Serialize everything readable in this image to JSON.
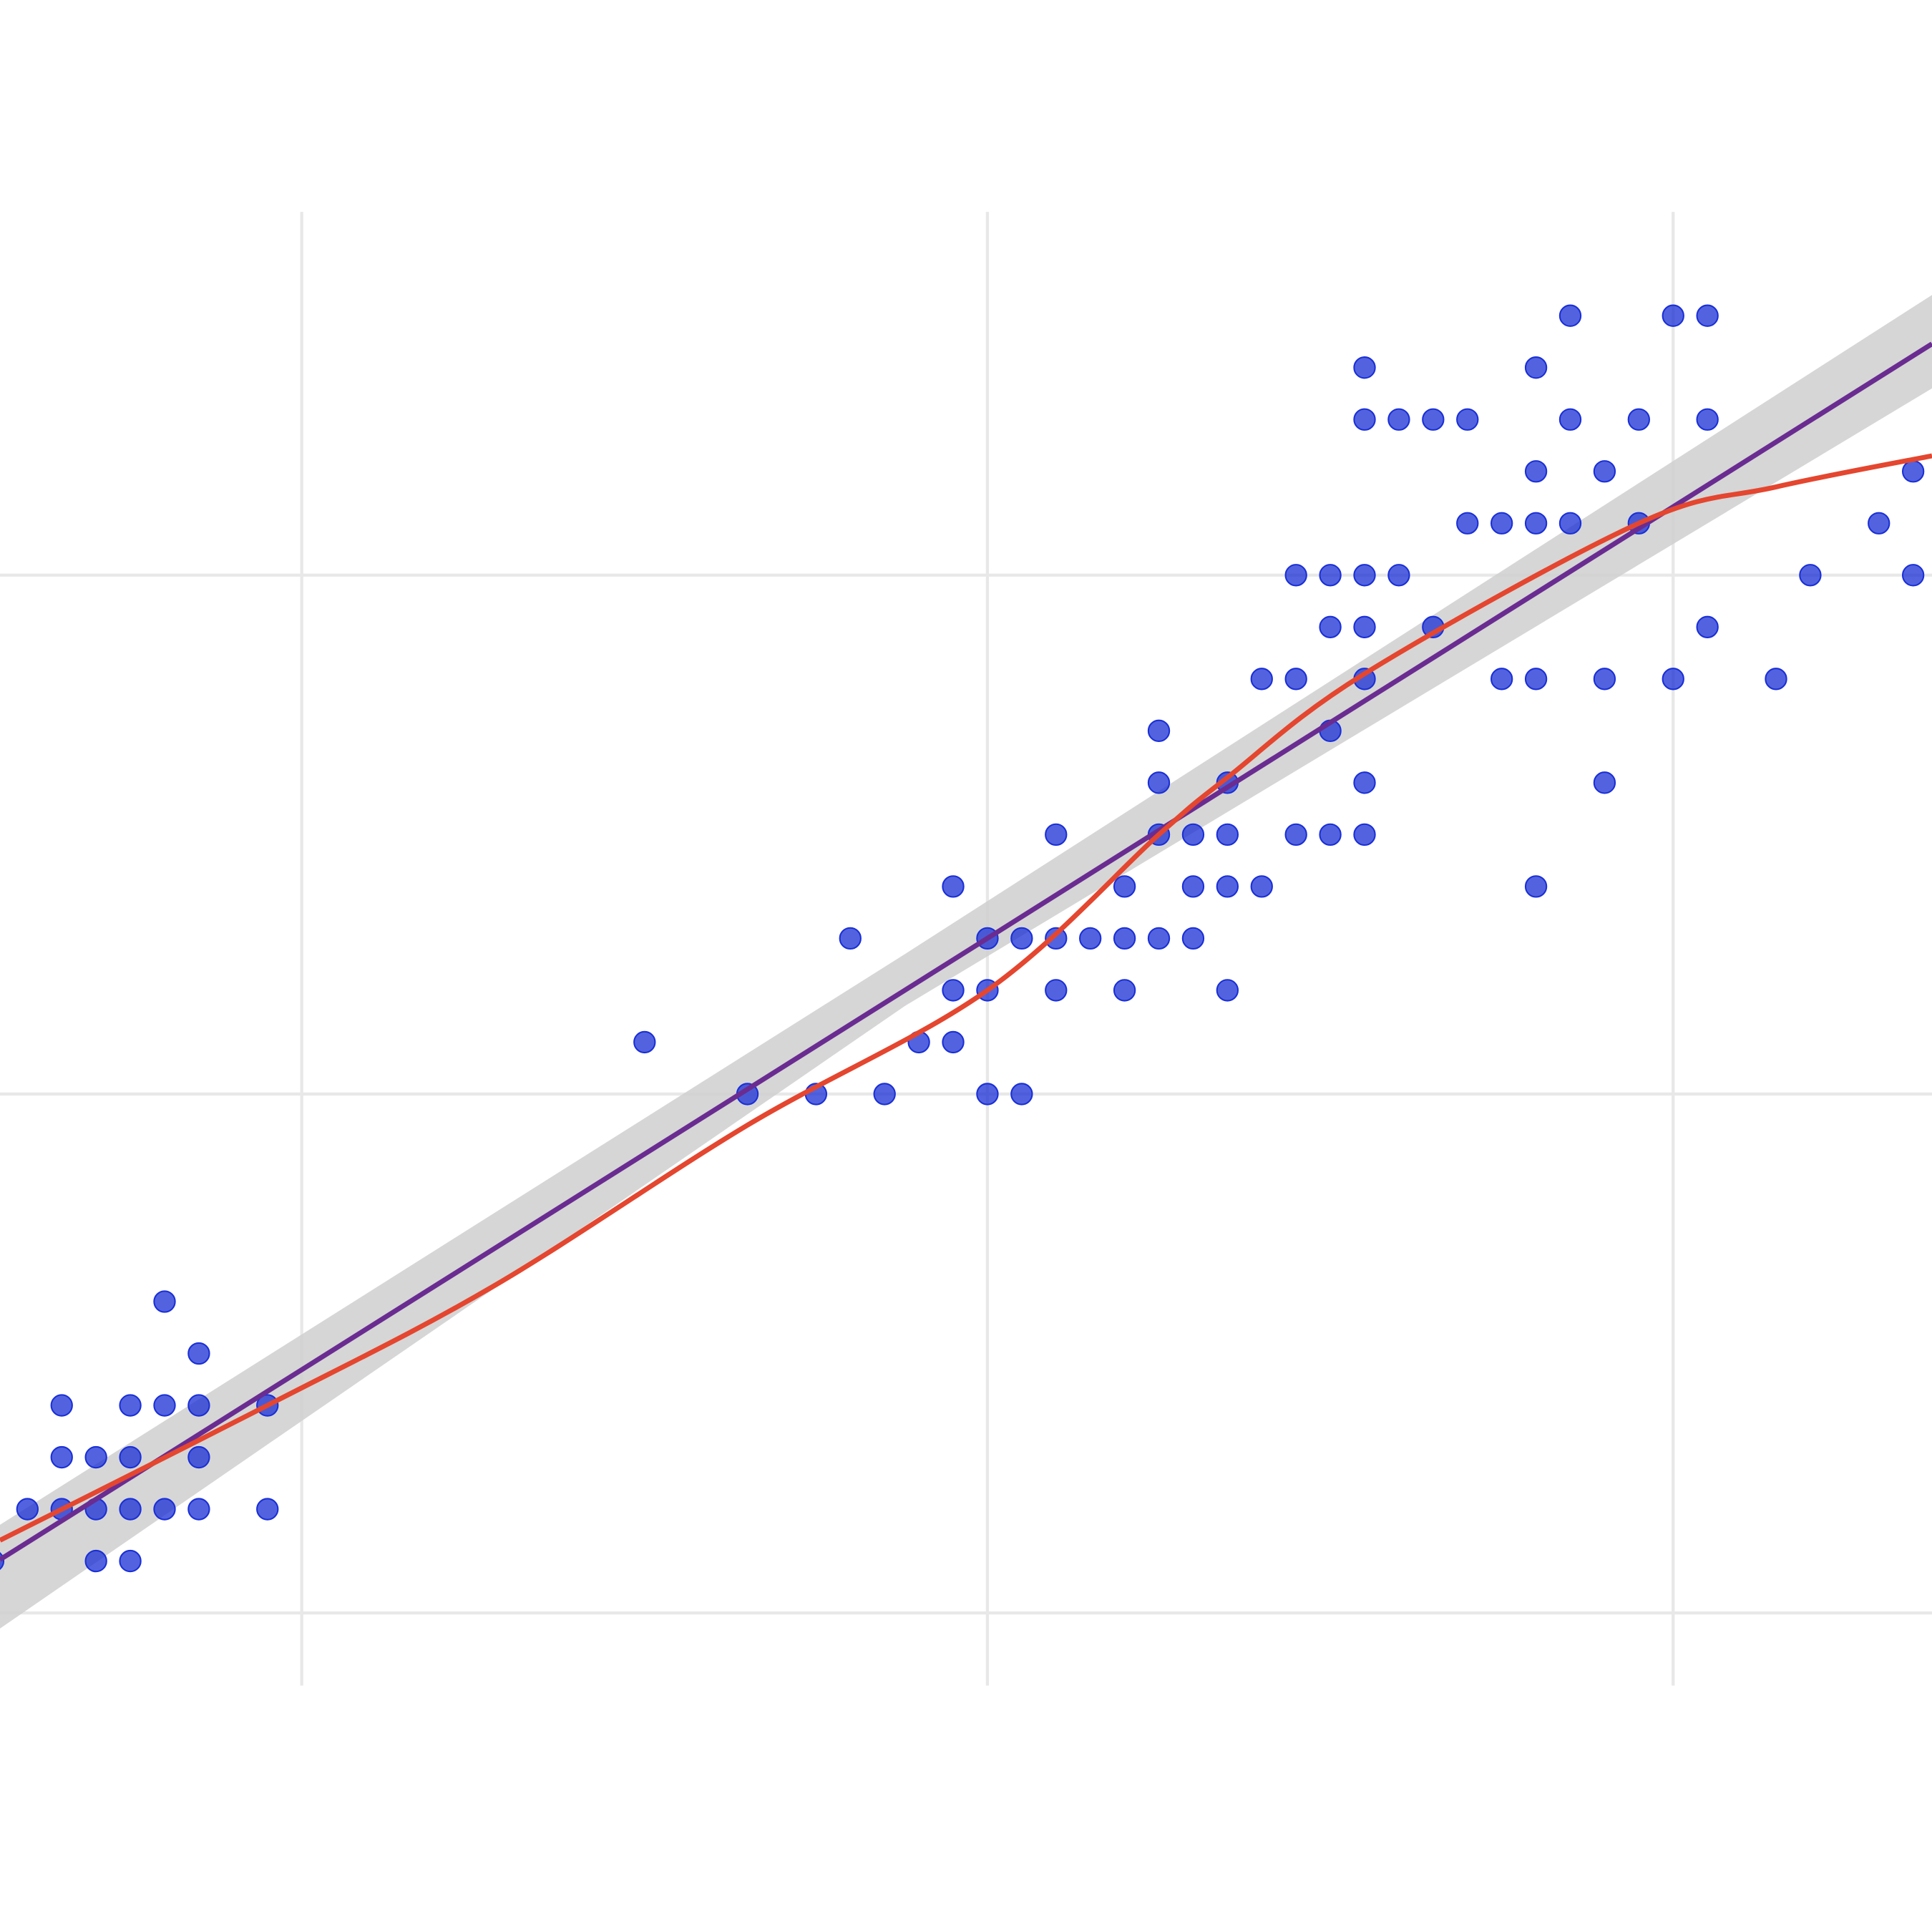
{
  "chart_data": {
    "type": "scatter",
    "title": "",
    "xlabel": "",
    "ylabel": "",
    "xlim": [
      1.12,
      6.755
    ],
    "ylim": [
      -0.14,
      2.7
    ],
    "x_gridlines": [
      2,
      4,
      6
    ],
    "y_gridlines": [
      0,
      1,
      2
    ],
    "grid": true,
    "legend": "none",
    "colors": {
      "points": "#1a2fd6",
      "linear_fit": "#6a2c91",
      "ci_band": "#cfcfcf",
      "smooth_fit": "#e4462f",
      "grid": "#e8e8e8"
    },
    "points": [
      [
        1.1,
        0.1
      ],
      [
        1.2,
        0.2
      ],
      [
        1.3,
        0.2
      ],
      [
        1.4,
        0.2
      ],
      [
        1.5,
        0.2
      ],
      [
        1.6,
        0.2
      ],
      [
        1.7,
        0.2
      ],
      [
        1.9,
        0.2
      ],
      [
        1.4,
        0.1
      ],
      [
        1.5,
        0.1
      ],
      [
        1.3,
        0.3
      ],
      [
        1.4,
        0.3
      ],
      [
        1.5,
        0.3
      ],
      [
        1.7,
        0.3
      ],
      [
        1.3,
        0.4
      ],
      [
        1.5,
        0.4
      ],
      [
        1.6,
        0.4
      ],
      [
        1.7,
        0.4
      ],
      [
        1.9,
        0.4
      ],
      [
        1.7,
        0.5
      ],
      [
        1.6,
        0.6
      ],
      [
        3.0,
        1.1
      ],
      [
        3.3,
        1.0
      ],
      [
        3.5,
        1.0
      ],
      [
        3.7,
        1.0
      ],
      [
        4.0,
        1.0
      ],
      [
        4.1,
        1.0
      ],
      [
        3.8,
        1.1
      ],
      [
        3.9,
        1.1
      ],
      [
        3.9,
        1.2
      ],
      [
        4.0,
        1.2
      ],
      [
        4.2,
        1.2
      ],
      [
        4.4,
        1.2
      ],
      [
        4.7,
        1.2
      ],
      [
        3.6,
        1.3
      ],
      [
        4.0,
        1.3
      ],
      [
        4.1,
        1.3
      ],
      [
        4.2,
        1.3
      ],
      [
        4.3,
        1.3
      ],
      [
        4.4,
        1.3
      ],
      [
        4.5,
        1.3
      ],
      [
        4.6,
        1.3
      ],
      [
        3.9,
        1.4
      ],
      [
        4.4,
        1.4
      ],
      [
        4.6,
        1.4
      ],
      [
        4.7,
        1.4
      ],
      [
        4.8,
        1.4
      ],
      [
        5.6,
        1.4
      ],
      [
        4.2,
        1.5
      ],
      [
        4.5,
        1.5
      ],
      [
        4.6,
        1.5
      ],
      [
        4.7,
        1.5
      ],
      [
        4.9,
        1.5
      ],
      [
        5.0,
        1.5
      ],
      [
        5.1,
        1.5
      ],
      [
        4.5,
        1.6
      ],
      [
        4.7,
        1.6
      ],
      [
        5.1,
        1.6
      ],
      [
        5.8,
        1.6
      ],
      [
        4.5,
        1.7
      ],
      [
        5.0,
        1.7
      ],
      [
        4.8,
        1.8
      ],
      [
        4.9,
        1.8
      ],
      [
        5.1,
        1.8
      ],
      [
        5.5,
        1.8
      ],
      [
        5.6,
        1.8
      ],
      [
        5.8,
        1.8
      ],
      [
        6.0,
        1.8
      ],
      [
        6.3,
        1.8
      ],
      [
        5.0,
        1.9
      ],
      [
        5.1,
        1.9
      ],
      [
        5.3,
        1.9
      ],
      [
        6.1,
        1.9
      ],
      [
        4.9,
        2.0
      ],
      [
        5.0,
        2.0
      ],
      [
        5.1,
        2.0
      ],
      [
        5.2,
        2.0
      ],
      [
        6.4,
        2.0
      ],
      [
        6.7,
        2.0
      ],
      [
        5.4,
        2.1
      ],
      [
        5.5,
        2.1
      ],
      [
        5.6,
        2.1
      ],
      [
        5.7,
        2.1
      ],
      [
        5.9,
        2.1
      ],
      [
        6.6,
        2.1
      ],
      [
        5.6,
        2.2
      ],
      [
        5.8,
        2.2
      ],
      [
        6.7,
        2.2
      ],
      [
        5.1,
        2.3
      ],
      [
        5.2,
        2.3
      ],
      [
        5.3,
        2.3
      ],
      [
        5.4,
        2.3
      ],
      [
        5.7,
        2.3
      ],
      [
        5.9,
        2.3
      ],
      [
        6.1,
        2.3
      ],
      [
        5.1,
        2.4
      ],
      [
        5.6,
        2.4
      ],
      [
        5.7,
        2.5
      ],
      [
        6.0,
        2.5
      ],
      [
        6.1,
        2.5
      ]
    ],
    "linear_fit": {
      "intercept": -0.363,
      "slope": 0.4158,
      "ci": [
        [
          1.12,
          -0.03,
          0.17
        ],
        [
          3.76,
          1.17,
          1.27
        ],
        [
          6.755,
          2.36,
          2.54
        ]
      ]
    },
    "smooth_fit": [
      [
        1.12,
        0.14
      ],
      [
        1.9,
        0.4
      ],
      [
        2.56,
        0.63
      ],
      [
        3.3,
        0.94
      ],
      [
        4.0,
        1.2
      ],
      [
        4.5,
        1.5
      ],
      [
        4.7,
        1.61
      ],
      [
        5.1,
        1.81
      ],
      [
        5.9,
        2.1
      ],
      [
        6.3,
        2.17
      ],
      [
        6.755,
        2.23
      ]
    ]
  }
}
